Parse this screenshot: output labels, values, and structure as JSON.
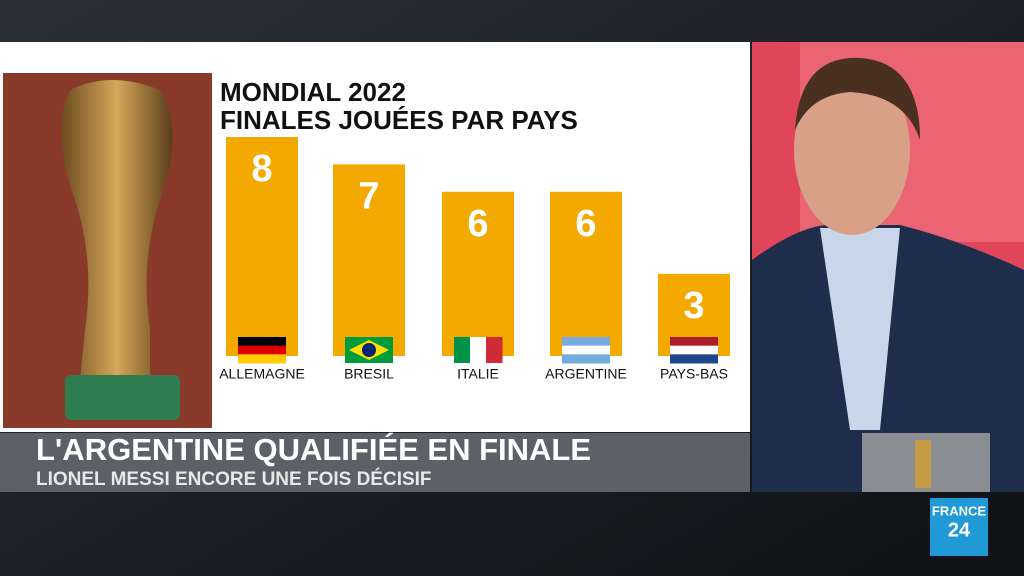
{
  "chart_data": {
    "type": "bar",
    "title": "MONDIAL 2022",
    "subtitle": "FINALES JOUÉES PAR PAYS",
    "categories": [
      "ALLEMAGNE",
      "BRESIL",
      "ITALIE",
      "ARGENTINE",
      "PAYS-BAS"
    ],
    "values": [
      8,
      7,
      6,
      6,
      3
    ],
    "color": "#f4a900"
  },
  "banner": {
    "headline": "L'ARGENTINE QUALIFIÉE EN FINALE",
    "subheadline": "LIONEL MESSI ENCORE UNE FOIS DÉCISIF"
  },
  "logo": {
    "name": "FRANCE",
    "number": "24"
  }
}
